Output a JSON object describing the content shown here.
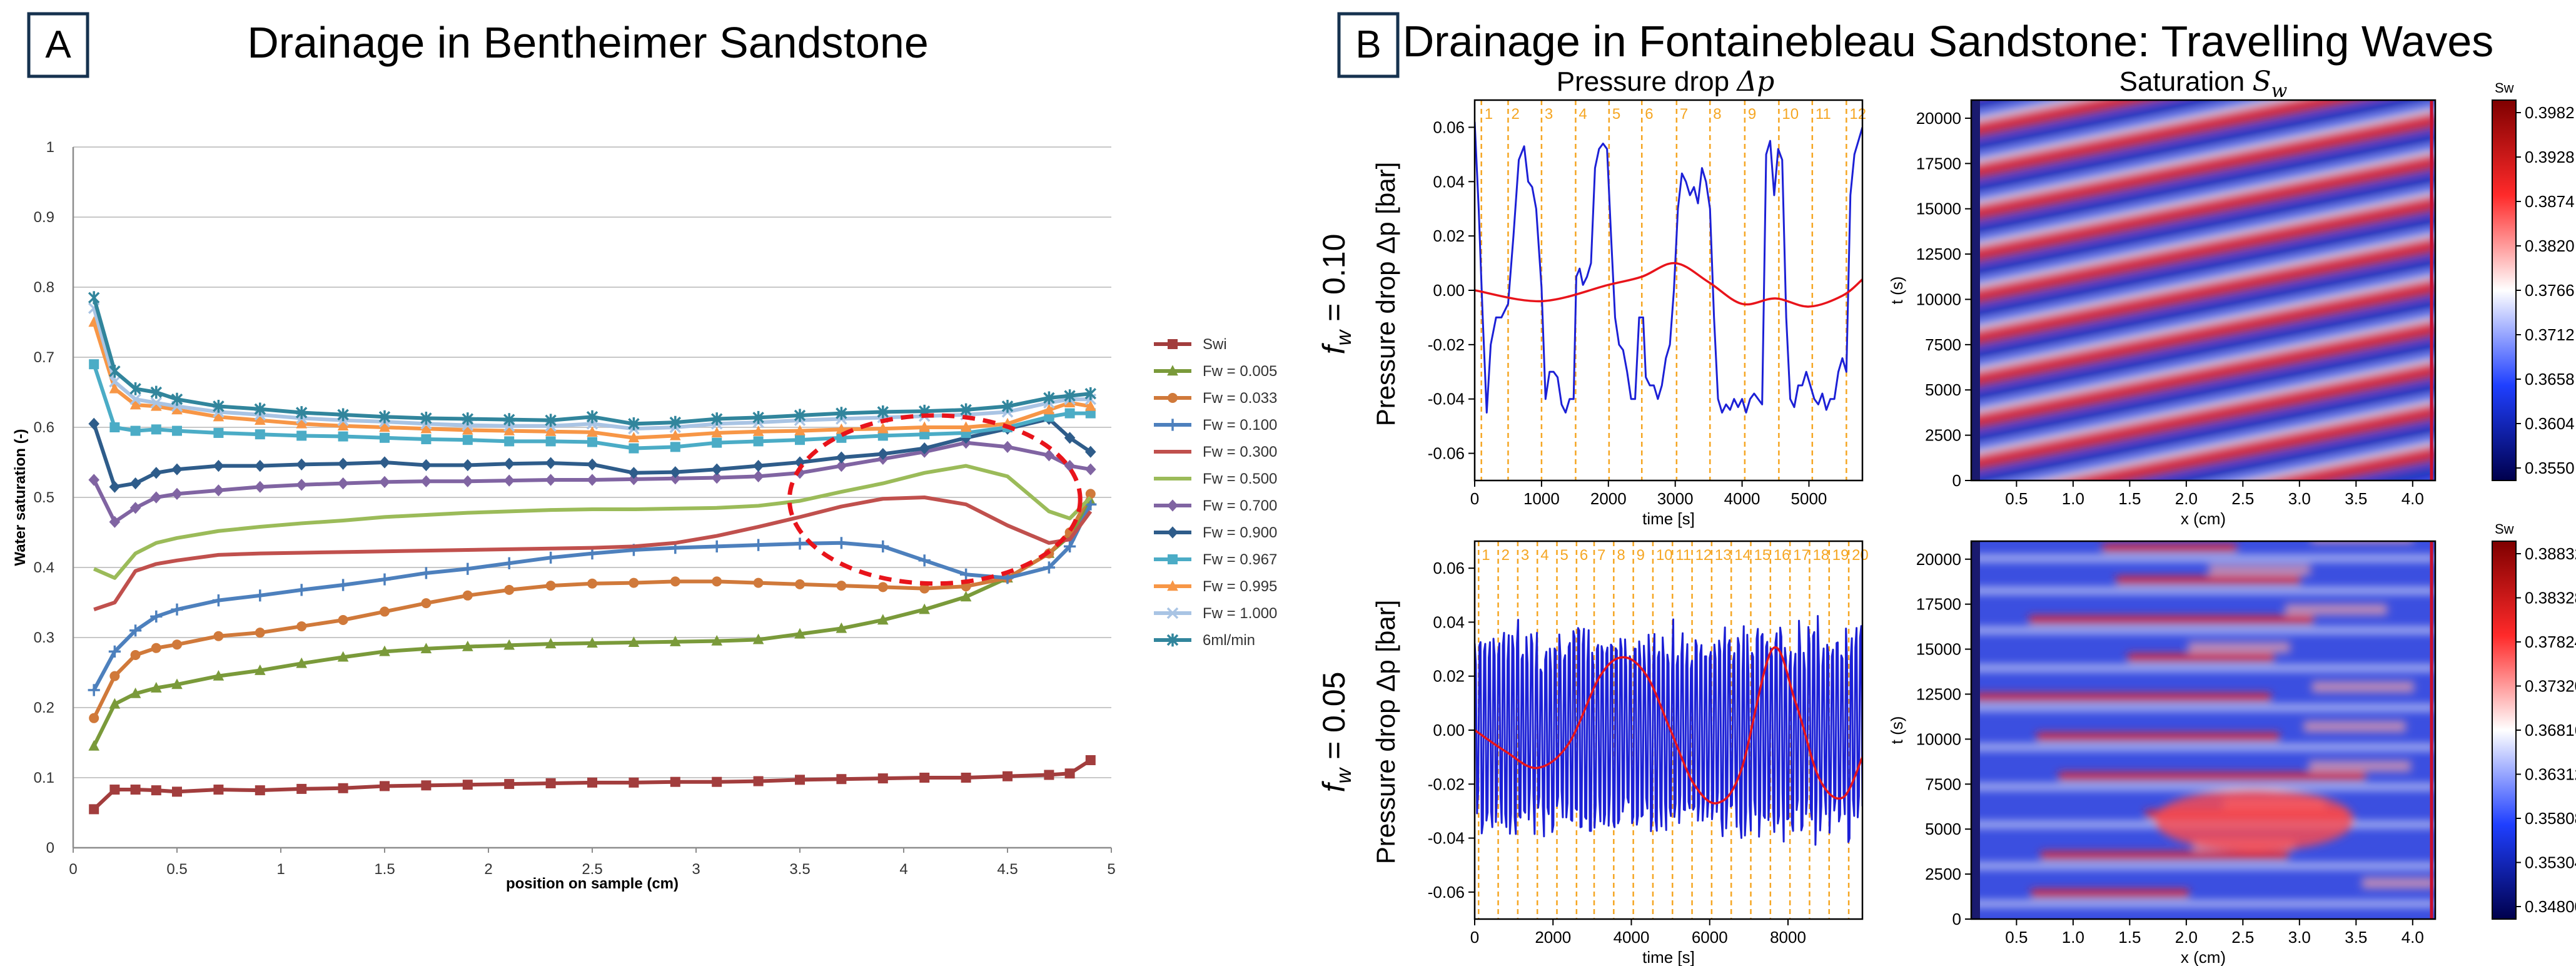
{
  "panelA": {
    "badge": "A",
    "title": "Drainage in Bentheimer Sandstone",
    "chart_data": {
      "type": "line",
      "title": "Drainage in Bentheimer Sandstone",
      "xlabel": "position on sample (cm)",
      "ylabel": "Water saturation (-)",
      "xlim": [
        0,
        5
      ],
      "ylim": [
        0,
        1
      ],
      "xticks": [
        "0",
        "0.5",
        "1",
        "1.5",
        "2",
        "2.5",
        "3",
        "3.5",
        "4",
        "4.5",
        "5"
      ],
      "yticks": [
        "0",
        "0.1",
        "0.2",
        "0.3",
        "0.4",
        "0.5",
        "0.6",
        "0.7",
        "0.8",
        "0.9",
        "1"
      ],
      "grid": "horizontal",
      "legend_position": "right",
      "x": [
        0.1,
        0.2,
        0.3,
        0.4,
        0.5,
        0.7,
        0.9,
        1.1,
        1.3,
        1.5,
        1.7,
        1.9,
        2.1,
        2.3,
        2.5,
        2.7,
        2.9,
        3.1,
        3.3,
        3.5,
        3.7,
        3.9,
        4.1,
        4.3,
        4.5,
        4.7,
        4.8,
        4.9
      ],
      "series": [
        {
          "name": "Swi",
          "color": "#a23d3d",
          "marker": "square",
          "values": [
            0.055,
            0.083,
            0.083,
            0.082,
            0.08,
            0.083,
            0.082,
            0.084,
            0.085,
            0.088,
            0.089,
            0.09,
            0.091,
            0.092,
            0.093,
            0.093,
            0.094,
            0.094,
            0.095,
            0.097,
            0.098,
            0.099,
            0.1,
            0.1,
            0.102,
            0.104,
            0.106,
            0.125
          ]
        },
        {
          "name": "Fw = 0.005",
          "color": "#7a9a3a",
          "marker": "triangle",
          "values": [
            0.145,
            0.205,
            0.22,
            0.228,
            0.233,
            0.245,
            0.253,
            0.263,
            0.272,
            0.28,
            0.284,
            0.287,
            0.289,
            0.291,
            0.292,
            0.293,
            0.294,
            0.295,
            0.297,
            0.305,
            0.313,
            0.325,
            0.34,
            0.358,
            0.385,
            0.42,
            0.445,
            0.495
          ]
        },
        {
          "name": "Fw = 0.033",
          "color": "#d0793a",
          "marker": "circle",
          "values": [
            0.185,
            0.245,
            0.275,
            0.285,
            0.29,
            0.302,
            0.307,
            0.316,
            0.325,
            0.337,
            0.349,
            0.36,
            0.368,
            0.374,
            0.377,
            0.378,
            0.38,
            0.38,
            0.378,
            0.376,
            0.374,
            0.372,
            0.37,
            0.373,
            0.385,
            0.42,
            0.45,
            0.505
          ]
        },
        {
          "name": "Fw = 0.100",
          "color": "#4d80bd",
          "marker": "plus",
          "values": [
            0.225,
            0.28,
            0.31,
            0.33,
            0.34,
            0.353,
            0.36,
            0.368,
            0.375,
            0.383,
            0.392,
            0.398,
            0.406,
            0.414,
            0.42,
            0.425,
            0.428,
            0.43,
            0.432,
            0.434,
            0.435,
            0.43,
            0.41,
            0.39,
            0.385,
            0.4,
            0.43,
            0.49
          ]
        },
        {
          "name": "Fw = 0.300",
          "color": "#c0504d",
          "marker": "none",
          "values": [
            0.34,
            0.35,
            0.395,
            0.405,
            0.41,
            0.418,
            0.42,
            0.421,
            0.422,
            0.423,
            0.424,
            0.425,
            0.426,
            0.427,
            0.428,
            0.43,
            0.435,
            0.445,
            0.458,
            0.472,
            0.487,
            0.498,
            0.5,
            0.49,
            0.46,
            0.435,
            0.44,
            0.48
          ]
        },
        {
          "name": "Fw = 0.500",
          "color": "#9bbb59",
          "marker": "none",
          "values": [
            0.398,
            0.385,
            0.42,
            0.435,
            0.442,
            0.452,
            0.458,
            0.463,
            0.467,
            0.472,
            0.475,
            0.478,
            0.48,
            0.482,
            0.483,
            0.483,
            0.484,
            0.485,
            0.488,
            0.495,
            0.508,
            0.52,
            0.535,
            0.545,
            0.53,
            0.48,
            0.47,
            0.5
          ]
        },
        {
          "name": "Fw = 0.700",
          "color": "#8064a2",
          "marker": "diamond",
          "values": [
            0.525,
            0.465,
            0.485,
            0.5,
            0.505,
            0.51,
            0.515,
            0.518,
            0.52,
            0.522,
            0.523,
            0.523,
            0.524,
            0.525,
            0.525,
            0.526,
            0.527,
            0.528,
            0.53,
            0.535,
            0.545,
            0.555,
            0.565,
            0.578,
            0.572,
            0.56,
            0.545,
            0.54
          ]
        },
        {
          "name": "Fw = 0.900",
          "color": "#2e5c8a",
          "marker": "diamond",
          "values": [
            0.605,
            0.515,
            0.52,
            0.535,
            0.54,
            0.545,
            0.545,
            0.547,
            0.548,
            0.55,
            0.546,
            0.546,
            0.548,
            0.549,
            0.547,
            0.535,
            0.536,
            0.54,
            0.545,
            0.55,
            0.557,
            0.562,
            0.57,
            0.585,
            0.598,
            0.612,
            0.585,
            0.565
          ]
        },
        {
          "name": "Fw = 0.967",
          "color": "#4bacc6",
          "marker": "square",
          "values": [
            0.69,
            0.6,
            0.595,
            0.597,
            0.595,
            0.592,
            0.59,
            0.588,
            0.587,
            0.585,
            0.583,
            0.582,
            0.58,
            0.58,
            0.579,
            0.57,
            0.572,
            0.578,
            0.58,
            0.582,
            0.585,
            0.588,
            0.59,
            0.592,
            0.6,
            0.615,
            0.62,
            0.62
          ]
        },
        {
          "name": "Fw = 0.995",
          "color": "#f79646",
          "marker": "triangle",
          "values": [
            0.75,
            0.655,
            0.632,
            0.63,
            0.625,
            0.615,
            0.61,
            0.605,
            0.602,
            0.6,
            0.598,
            0.596,
            0.595,
            0.594,
            0.593,
            0.585,
            0.588,
            0.592,
            0.594,
            0.595,
            0.597,
            0.598,
            0.6,
            0.6,
            0.605,
            0.625,
            0.635,
            0.63
          ]
        },
        {
          "name": "Fw = 1.000",
          "color": "#a9c4e4",
          "marker": "x",
          "values": [
            0.77,
            0.665,
            0.64,
            0.635,
            0.63,
            0.622,
            0.618,
            0.613,
            0.61,
            0.608,
            0.605,
            0.603,
            0.602,
            0.602,
            0.605,
            0.598,
            0.6,
            0.605,
            0.607,
            0.61,
            0.612,
            0.614,
            0.616,
            0.618,
            0.622,
            0.635,
            0.64,
            0.64
          ]
        },
        {
          "name": "6ml/min",
          "color": "#31859c",
          "marker": "star",
          "values": [
            0.785,
            0.68,
            0.655,
            0.65,
            0.64,
            0.63,
            0.626,
            0.621,
            0.618,
            0.615,
            0.613,
            0.612,
            0.611,
            0.61,
            0.615,
            0.605,
            0.607,
            0.612,
            0.614,
            0.617,
            0.62,
            0.622,
            0.623,
            0.625,
            0.63,
            0.642,
            0.645,
            0.648
          ]
        }
      ],
      "annotation": {
        "shape": "dashed ellipse",
        "color": "#e8141b",
        "x_center": 4.15,
        "y_center": 0.497,
        "x_radius": 0.7,
        "y_radius": 0.12
      }
    }
  },
  "panelB": {
    "badge": "B",
    "title": "Drainage in Fontainebleau Sandstone: Travelling Waves",
    "col1_title": "Pressure drop",
    "col1_symbol": "Δp",
    "col2_title": "Saturation",
    "col2_symbol": "S",
    "col2_subscript": "w",
    "chart_data": [
      {
        "type": "line",
        "row_label": "fw = 0.10",
        "ylabel": "Pressure drop Δp [bar]",
        "xlabel": "time [s]",
        "xlim": [
          0,
          5800
        ],
        "ylim": [
          -0.07,
          0.07
        ],
        "xticks": [
          "0",
          "1000",
          "2000",
          "3000",
          "4000",
          "5000"
        ],
        "yticks": [
          "-0.06",
          "-0.04",
          "-0.02",
          "0.00",
          "0.02",
          "0.04",
          "0.06"
        ],
        "event_times": [
          100,
          500,
          1000,
          1510,
          2010,
          2500,
          3020,
          3520,
          4040,
          4550,
          5050,
          5560
        ],
        "event_labels": [
          "1",
          "2",
          "3",
          "4",
          "5",
          "6",
          "7",
          "8",
          "9",
          "10",
          "11",
          "12"
        ],
        "series": [
          {
            "name": "raw",
            "color": "#1c20d6",
            "x": [
              0,
              60,
              120,
              180,
              240,
              320,
              400,
              500,
              580,
              660,
              740,
              800,
              860,
              920,
              1000,
              1060,
              1120,
              1180,
              1240,
              1300,
              1360,
              1420,
              1480,
              1520,
              1570,
              1620,
              1680,
              1740,
              1800,
              1860,
              1920,
              1980,
              2040,
              2100,
              2160,
              2220,
              2280,
              2340,
              2400,
              2460,
              2520,
              2560,
              2620,
              2680,
              2740,
              2800,
              2860,
              2920,
              2980,
              3040,
              3100,
              3160,
              3220,
              3280,
              3340,
              3400,
              3460,
              3520,
              3580,
              3640,
              3700,
              3760,
              3820,
              3880,
              3940,
              4000,
              4060,
              4120,
              4180,
              4240,
              4300,
              4360,
              4420,
              4480,
              4540,
              4600,
              4660,
              4720,
              4780,
              4840,
              4900,
              4960,
              5020,
              5080,
              5140,
              5200,
              5260,
              5320,
              5380,
              5440,
              5500,
              5560,
              5620,
              5680,
              5740,
              5800
            ],
            "y": [
              0.062,
              0.03,
              -0.01,
              -0.045,
              -0.02,
              -0.01,
              -0.01,
              -0.005,
              0.02,
              0.048,
              0.053,
              0.04,
              0.038,
              0.03,
              0.001,
              -0.04,
              -0.03,
              -0.03,
              -0.032,
              -0.042,
              -0.045,
              -0.04,
              -0.04,
              0.005,
              0.008,
              0.002,
              0.005,
              0.01,
              0.045,
              0.052,
              0.054,
              0.052,
              0.02,
              -0.01,
              -0.02,
              -0.022,
              -0.03,
              -0.04,
              -0.04,
              -0.01,
              -0.01,
              -0.032,
              -0.035,
              -0.035,
              -0.04,
              -0.035,
              -0.025,
              -0.02,
              0.0,
              0.03,
              0.043,
              0.04,
              0.035,
              0.038,
              0.032,
              0.045,
              0.04,
              0.03,
              -0.01,
              -0.04,
              -0.045,
              -0.042,
              -0.044,
              -0.04,
              -0.043,
              -0.04,
              -0.045,
              -0.04,
              -0.038,
              -0.04,
              -0.042,
              0.05,
              0.055,
              0.035,
              0.052,
              0.048,
              -0.01,
              -0.04,
              -0.043,
              -0.035,
              -0.035,
              -0.03,
              -0.035,
              -0.04,
              -0.042,
              -0.038,
              -0.044,
              -0.04,
              -0.04,
              -0.03,
              -0.025,
              -0.03,
              0.035,
              0.05,
              0.055,
              0.06
            ]
          },
          {
            "name": "smoothed",
            "color": "#e8141b",
            "x": [
              0,
              1000,
              2000,
              2500,
              3000,
              3500,
              4000,
              4500,
              5000,
              5500,
              5800
            ],
            "y": [
              0.0,
              -0.004,
              0.002,
              0.005,
              0.01,
              0.003,
              -0.005,
              -0.003,
              -0.006,
              -0.002,
              0.004
            ]
          }
        ]
      },
      {
        "type": "line",
        "row_label": "fw = 0.05",
        "ylabel": "Pressure drop Δp [bar]",
        "xlabel": "time [s]",
        "xlim": [
          0,
          9900
        ],
        "ylim": [
          -0.07,
          0.07
        ],
        "xticks": [
          "0",
          "2000",
          "4000",
          "6000",
          "8000"
        ],
        "yticks": [
          "-0.06",
          "-0.04",
          "-0.02",
          "0.00",
          "0.02",
          "0.04",
          "0.06"
        ],
        "event_times": [
          100,
          600,
          1100,
          1600,
          2100,
          2600,
          3050,
          3550,
          4050,
          4550,
          5050,
          5550,
          6050,
          6550,
          7050,
          7550,
          8050,
          8550,
          9050,
          9550
        ],
        "event_labels": [
          "1",
          "2",
          "3",
          "4",
          "5",
          "6",
          "7",
          "8",
          "9",
          "10",
          "11",
          "12",
          "13",
          "14",
          "15",
          "16",
          "17",
          "18",
          "19",
          "20"
        ],
        "series": [
          {
            "name": "raw",
            "color": "#1c20d6",
            "oscillation": "dense ~120 s period",
            "amplitude": 0.035,
            "offset": 0.0
          },
          {
            "name": "smoothed",
            "color": "#e8141b",
            "x": [
              0,
              800,
              1600,
              2400,
              3200,
              3800,
              4400,
              5000,
              5600,
              6200,
              6800,
              7600,
              8200,
              8800,
              9400,
              9900
            ],
            "y": [
              0.0,
              -0.008,
              -0.014,
              -0.005,
              0.02,
              0.027,
              0.02,
              0.0,
              -0.02,
              -0.027,
              -0.015,
              0.03,
              0.01,
              -0.018,
              -0.025,
              -0.01
            ]
          }
        ]
      },
      {
        "type": "heatmap",
        "ylabel": "t (s)",
        "xlabel": "x (cm)",
        "xlim": [
          0.1,
          4.2
        ],
        "ylim": [
          0,
          21000
        ],
        "xticks": [
          "0.5",
          "1.0",
          "1.5",
          "2.0",
          "2.5",
          "3.0",
          "3.5",
          "4.0"
        ],
        "yticks": [
          "0",
          "2500",
          "5000",
          "7500",
          "10000",
          "12500",
          "15000",
          "17500",
          "20000"
        ],
        "colorbar_label": "Sw",
        "colorbar_ticks": [
          "0.3982",
          "0.3928",
          "0.3874",
          "0.3820",
          "0.3766",
          "0.3712",
          "0.3658",
          "0.3604",
          "0.3550"
        ],
        "colormap": "seismic (blue-white-red)",
        "pattern": "diagonal travelling red bands"
      },
      {
        "type": "heatmap",
        "ylabel": "t (s)",
        "xlabel": "x (cm)",
        "xlim": [
          0.1,
          4.2
        ],
        "ylim": [
          0,
          21000
        ],
        "xticks": [
          "0.5",
          "1.0",
          "1.5",
          "2.0",
          "2.5",
          "3.0",
          "3.5",
          "4.0"
        ],
        "yticks": [
          "0",
          "2500",
          "5000",
          "7500",
          "10000",
          "12500",
          "15000",
          "17500",
          "20000"
        ],
        "colorbar_label": "Sw",
        "colorbar_ticks": [
          "0.38832",
          "0.38328",
          "0.37824",
          "0.37320",
          "0.36816",
          "0.36312",
          "0.35808",
          "0.35304",
          "0.34800"
        ],
        "colormap": "seismic (blue-white-red)",
        "pattern": "horizontal red streaks"
      }
    ]
  }
}
